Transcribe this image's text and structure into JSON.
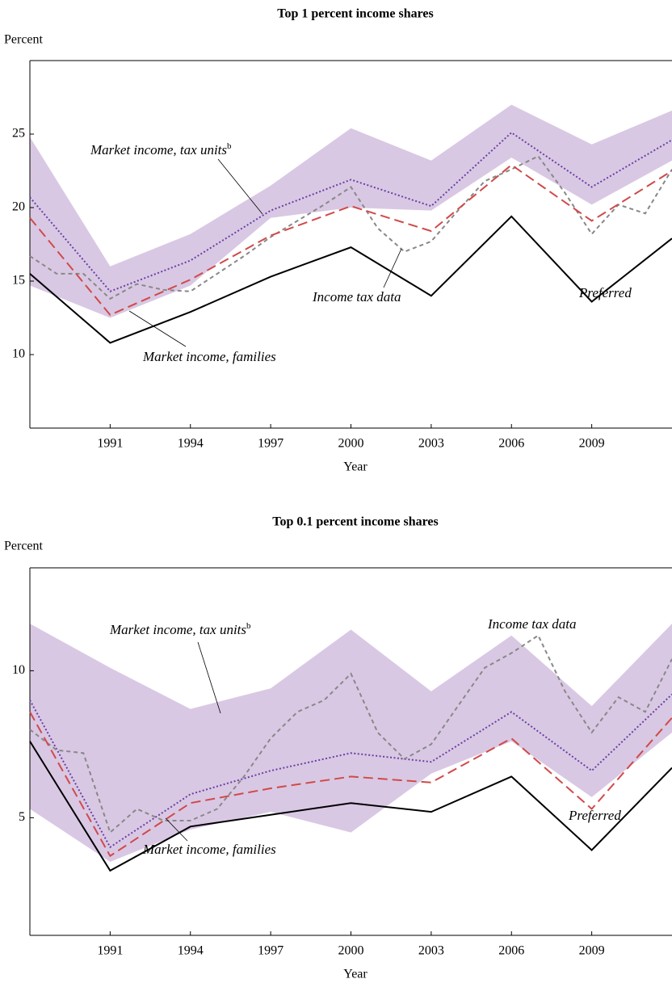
{
  "chart_data": [
    {
      "type": "line",
      "title": "Top 1 percent income shares",
      "ylabel": "Percent",
      "xlabel": "Year",
      "xlim": [
        1988,
        2012
      ],
      "xticks": [
        1991,
        1994,
        1997,
        2000,
        2003,
        2006,
        2009
      ],
      "ylim": [
        5,
        30
      ],
      "yticks": [
        10,
        15,
        20,
        25
      ],
      "grid": false,
      "band": {
        "color": "#d9c8e3",
        "x": [
          1988,
          1991,
          1994,
          1997,
          2000,
          2003,
          2006,
          2009,
          2012
        ],
        "upper": [
          24.8,
          16.0,
          18.2,
          21.5,
          25.4,
          23.2,
          27.0,
          24.3,
          26.6
        ],
        "lower": [
          14.7,
          12.5,
          14.7,
          19.3,
          20.0,
          19.8,
          23.4,
          20.2,
          23.2
        ]
      },
      "series": [
        {
          "color": "#6a3fa6",
          "style": "dotted",
          "x": [
            1988,
            1991,
            1994,
            1997,
            2000,
            2003,
            2006,
            2009,
            2012
          ],
          "values": [
            20.7,
            14.3,
            16.4,
            19.8,
            21.9,
            20.1,
            25.1,
            21.4,
            24.6
          ]
        },
        {
          "color": "#888888",
          "style": "dashed",
          "x": [
            1988,
            1989,
            1990,
            1991,
            1992,
            1993,
            1994,
            1995,
            1996,
            1997,
            1998,
            1999,
            2000,
            2001,
            2002,
            2003,
            2004,
            2005,
            2006,
            2007,
            2008,
            2009,
            2010,
            2011,
            2012
          ],
          "values": [
            16.7,
            15.5,
            15.5,
            13.8,
            14.8,
            14.4,
            14.3,
            15.5,
            16.7,
            18.0,
            19.1,
            20.2,
            21.4,
            18.6,
            17.0,
            17.7,
            19.8,
            21.8,
            22.6,
            23.5,
            21.0,
            18.2,
            20.2,
            19.6,
            22.6
          ]
        },
        {
          "color": "#000000",
          "style": "solid",
          "x": [
            1988,
            1991,
            1994,
            1997,
            2000,
            2003,
            2006,
            2009,
            2012
          ],
          "values": [
            15.5,
            10.8,
            12.9,
            15.3,
            17.3,
            14.0,
            19.4,
            13.6,
            17.9
          ]
        },
        {
          "color": "#d04a4a",
          "style": "longdash",
          "x": [
            1988,
            1991,
            1994,
            1997,
            2000,
            2003,
            2006,
            2009,
            2012
          ],
          "values": [
            19.3,
            12.7,
            15.1,
            18.1,
            20.1,
            18.4,
            22.9,
            19.1,
            22.5
          ]
        }
      ],
      "annotations": [
        {
          "text": "Market income, tax units",
          "sup": "b"
        },
        {
          "text": "Income tax data"
        },
        {
          "text": "Preferred"
        },
        {
          "text": "Market income, families"
        }
      ]
    },
    {
      "type": "line",
      "title": "Top 0.1 percent income shares",
      "ylabel": "Percent",
      "xlabel": "Year",
      "xlim": [
        1988,
        2012
      ],
      "xticks": [
        1991,
        1994,
        1997,
        2000,
        2003,
        2006,
        2009
      ],
      "ylim": [
        1,
        13.5
      ],
      "yticks": [
        5,
        10
      ],
      "grid": false,
      "band": {
        "color": "#d9c8e3",
        "x": [
          1988,
          1991,
          1994,
          1997,
          2000,
          2003,
          2006,
          2009,
          2012
        ],
        "upper": [
          11.6,
          10.1,
          8.7,
          9.4,
          11.4,
          9.3,
          11.2,
          8.8,
          11.6
        ],
        "lower": [
          5.3,
          3.5,
          4.6,
          5.2,
          4.5,
          6.5,
          7.6,
          5.7,
          7.9
        ]
      },
      "series": [
        {
          "color": "#6a3fa6",
          "style": "dotted",
          "x": [
            1988,
            1991,
            1994,
            1997,
            2000,
            2003,
            2006,
            2009,
            2012
          ],
          "values": [
            9.0,
            4.0,
            5.8,
            6.6,
            7.2,
            6.9,
            8.6,
            6.6,
            9.2
          ]
        },
        {
          "color": "#888888",
          "style": "dashed",
          "x": [
            1988,
            1989,
            1990,
            1991,
            1992,
            1993,
            1994,
            1995,
            1996,
            1997,
            1998,
            1999,
            2000,
            2001,
            2002,
            2003,
            2004,
            2005,
            2006,
            2007,
            2008,
            2009,
            2010,
            2011,
            2012
          ],
          "values": [
            8.0,
            7.3,
            7.2,
            4.5,
            5.3,
            4.9,
            4.9,
            5.3,
            6.4,
            7.7,
            8.6,
            9.0,
            9.9,
            7.9,
            7.0,
            7.5,
            8.8,
            10.1,
            10.6,
            11.2,
            9.3,
            7.9,
            9.1,
            8.6,
            10.4
          ]
        },
        {
          "color": "#000000",
          "style": "solid",
          "x": [
            1988,
            1991,
            1994,
            1997,
            2000,
            2003,
            2006,
            2009,
            2012
          ],
          "values": [
            7.6,
            3.2,
            4.7,
            5.1,
            5.5,
            5.2,
            6.4,
            3.9,
            6.7
          ]
        },
        {
          "color": "#d04a4a",
          "style": "longdash",
          "x": [
            1988,
            1991,
            1994,
            1997,
            2000,
            2003,
            2006,
            2009,
            2012
          ],
          "values": [
            8.6,
            3.7,
            5.5,
            6.0,
            6.4,
            6.2,
            7.7,
            5.3,
            8.4
          ]
        }
      ],
      "annotations": [
        {
          "text": "Market income, tax units",
          "sup": "b"
        },
        {
          "text": "Income tax data"
        },
        {
          "text": "Preferred"
        },
        {
          "text": "Market income, families"
        }
      ]
    }
  ]
}
